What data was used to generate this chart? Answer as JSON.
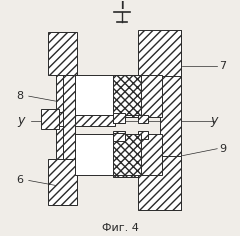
{
  "bg_color": "#f0ede8",
  "line_color": "#2a2a2a",
  "fig_caption": "Фиг. 4",
  "labels": {
    "top_section": "I",
    "label_7": "7",
    "label_8": "8",
    "label_9": "9",
    "label_6": "6",
    "label_y_left": "y",
    "label_y_right": "y"
  },
  "figsize": [
    2.4,
    2.36
  ],
  "dpi": 100
}
